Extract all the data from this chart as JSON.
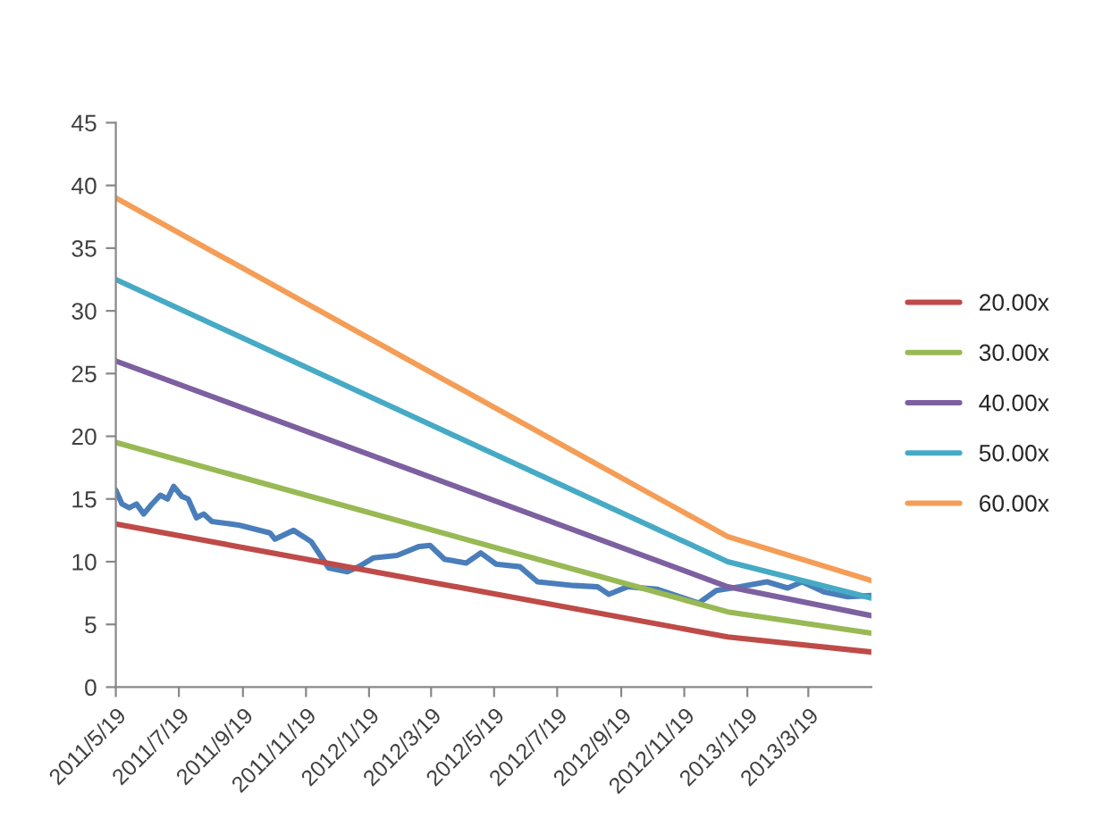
{
  "chart_data": {
    "type": "line",
    "xlim": [
      "2011-05-19",
      "2013-05-19"
    ],
    "xticks": [
      {
        "value": "2011-05-19",
        "label": "2011/5/19"
      },
      {
        "value": "2011-07-19",
        "label": "2011/7/19"
      },
      {
        "value": "2011-09-19",
        "label": "2011/9/19"
      },
      {
        "value": "2011-11-19",
        "label": "2011/11/19"
      },
      {
        "value": "2012-01-19",
        "label": "2012/1/19"
      },
      {
        "value": "2012-03-19",
        "label": "2012/3/19"
      },
      {
        "value": "2012-05-19",
        "label": "2012/5/19"
      },
      {
        "value": "2012-07-19",
        "label": "2012/7/19"
      },
      {
        "value": "2012-09-19",
        "label": "2012/9/19"
      },
      {
        "value": "2012-11-19",
        "label": "2012/11/19"
      },
      {
        "value": "2013-01-19",
        "label": "2013/1/19"
      },
      {
        "value": "2013-03-19",
        "label": "2013/3/19"
      }
    ],
    "ylim": [
      0,
      45
    ],
    "yticks": [
      0,
      5,
      10,
      15,
      20,
      25,
      30,
      35,
      40,
      45
    ],
    "grid": false,
    "legend": "right",
    "marker": "none",
    "line_style": "solid",
    "series": [
      {
        "color": "#4a7ebb",
        "x": [
          "2011-05-19",
          "2011-05-25",
          "2011-06-01",
          "2011-06-08",
          "2011-06-15",
          "2011-06-22",
          "2011-07-01",
          "2011-07-08",
          "2011-07-14",
          "2011-07-22",
          "2011-07-28",
          "2011-08-05",
          "2011-08-12",
          "2011-08-20",
          "2011-08-30",
          "2011-09-16",
          "2011-10-15",
          "2011-10-20",
          "2011-11-07",
          "2011-11-24",
          "2011-12-11",
          "2011-12-29",
          "2012-01-09",
          "2012-01-23",
          "2012-02-15",
          "2012-03-07",
          "2012-03-18",
          "2012-04-01",
          "2012-04-22",
          "2012-05-06",
          "2012-05-21",
          "2012-06-13",
          "2012-06-30",
          "2012-08-04",
          "2012-08-27",
          "2012-09-07",
          "2012-09-25",
          "2012-10-24",
          "2012-12-03",
          "2012-12-20",
          "2013-01-12",
          "2013-02-07",
          "2013-02-27",
          "2013-03-13",
          "2013-04-03",
          "2013-04-26",
          "2013-05-19"
        ],
        "values": [
          15.7,
          14.6,
          14.3,
          14.6,
          13.8,
          14.5,
          15.3,
          15.0,
          16.0,
          15.2,
          15.0,
          13.5,
          13.8,
          13.2,
          13.1,
          12.9,
          12.3,
          11.8,
          12.5,
          11.6,
          9.5,
          9.2,
          9.6,
          10.3,
          10.5,
          11.2,
          11.3,
          10.2,
          9.9,
          10.7,
          9.8,
          9.6,
          8.4,
          8.1,
          8.0,
          7.4,
          8.0,
          7.8,
          6.7,
          7.7,
          8.0,
          8.4,
          7.9,
          8.4,
          7.6,
          7.2,
          7.3
        ]
      },
      {
        "name": "20.00x",
        "color": "#be4b48",
        "x": [
          "2011-05-19",
          "2012-12-31",
          "2013-05-19"
        ],
        "values": [
          13.0,
          4.0,
          2.8
        ]
      },
      {
        "name": "30.00x",
        "color": "#98b954",
        "x": [
          "2011-05-19",
          "2012-12-31",
          "2013-05-19"
        ],
        "values": [
          19.5,
          6.0,
          4.3
        ]
      },
      {
        "name": "40.00x",
        "color": "#7d60a0",
        "x": [
          "2011-05-19",
          "2012-12-31",
          "2013-05-19"
        ],
        "values": [
          26.0,
          8.0,
          5.7
        ]
      },
      {
        "name": "50.00x",
        "color": "#46aac5",
        "x": [
          "2011-05-19",
          "2012-12-31",
          "2013-05-19"
        ],
        "values": [
          32.5,
          10.0,
          7.1
        ]
      },
      {
        "name": "60.00x",
        "color": "#f59d56",
        "x": [
          "2011-05-19",
          "2012-12-31",
          "2013-05-19"
        ],
        "values": [
          39.0,
          12.0,
          8.5
        ]
      }
    ]
  }
}
